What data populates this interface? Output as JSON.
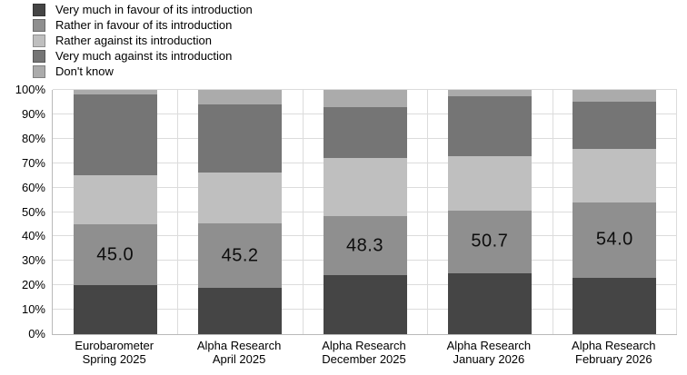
{
  "chart_data": {
    "type": "bar",
    "subtype": "stacked-percentage",
    "orientation": "vertical",
    "grid": "both",
    "legend_position": "top-left",
    "ylim": [
      0,
      100
    ],
    "ytick_step": 10,
    "ytick_labels": [
      "100%",
      "90%",
      "80%",
      "70%",
      "60%",
      "50%",
      "40%",
      "30%",
      "20%",
      "10%",
      "0%"
    ],
    "categories": [
      {
        "line1": "Eurobarometer",
        "line2": "Spring 2025"
      },
      {
        "line1": "Alpha Research",
        "line2": "April 2025"
      },
      {
        "line1": "Alpha Research",
        "line2": "December 2025"
      },
      {
        "line1": "Alpha Research",
        "line2": "January 2026"
      },
      {
        "line1": "Alpha Research",
        "line2": "February 2026"
      }
    ],
    "series": [
      {
        "name": "Very much in favour of its introduction",
        "color": "#454545",
        "values": [
          20,
          19,
          24,
          25,
          23
        ]
      },
      {
        "name": "Rather in favour of its introduction",
        "color": "#8f8f8f",
        "values": [
          25,
          26.2,
          24.3,
          25.7,
          31
        ]
      },
      {
        "name": "Rather against its introduction",
        "color": "#bfbfbf",
        "values": [
          20,
          20.8,
          23.7,
          22.3,
          22
        ]
      },
      {
        "name": "Very much against its introduction",
        "color": "#757575",
        "values": [
          33,
          28,
          21,
          24.5,
          19
        ]
      },
      {
        "name": "Don't know",
        "color": "#ababab",
        "values": [
          2,
          6,
          7,
          2.5,
          5
        ]
      }
    ],
    "bar_labels": [
      "45.0",
      "45.2",
      "48.3",
      "50.7",
      "54.0"
    ],
    "bar_labels_meaning": "total in favour (sum of first two segments), shown centered in the 'Rather in favour' segment",
    "colors": {
      "background": "#ffffff",
      "gridline": "#dcdcdc",
      "axis_line": "#b9b9b9",
      "text": "#000000",
      "bar_label_text": "#0d0d0d"
    }
  }
}
